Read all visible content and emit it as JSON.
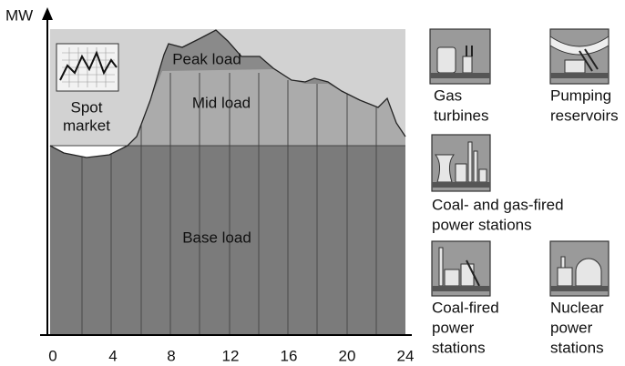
{
  "axis": {
    "y_label": "MW",
    "x_ticks": [
      0,
      4,
      8,
      12,
      16,
      20,
      24
    ]
  },
  "regions": {
    "spot_market": [
      "Spot",
      "market"
    ],
    "peak_load": "Peak load",
    "mid_load": "Mid load",
    "base_load": "Base load"
  },
  "sources": [
    {
      "label": [
        "Gas",
        "turbines"
      ]
    },
    {
      "label": [
        "Pumping",
        "reservoirs"
      ]
    },
    {
      "label": [
        "Coal- and gas-fired",
        "power stations"
      ]
    },
    {
      "label": [
        "Coal-fired",
        "power",
        "stations"
      ]
    },
    {
      "label": [
        "Nuclear",
        "power",
        "stations"
      ]
    }
  ]
}
